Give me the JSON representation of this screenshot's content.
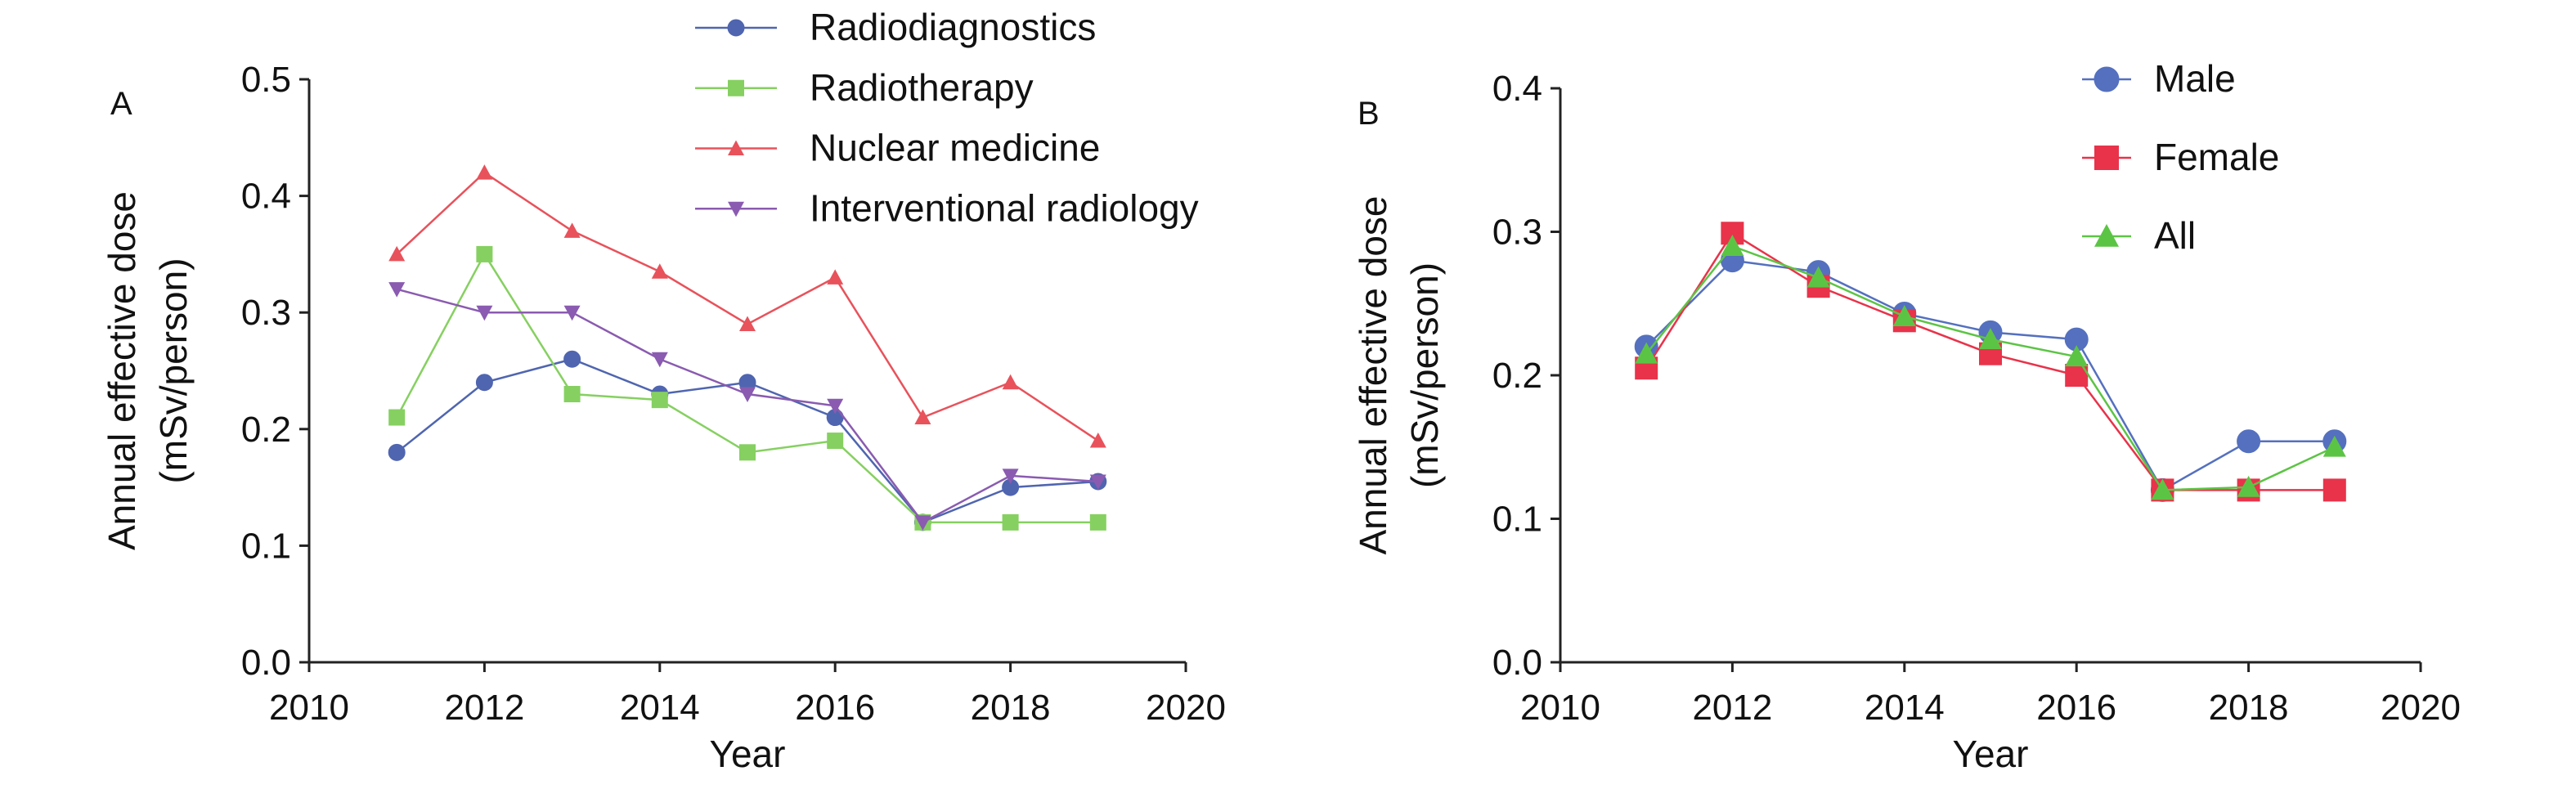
{
  "chart_data": [
    {
      "type": "line",
      "panel_label": "A",
      "title": "",
      "xlabel": "Year",
      "ylabel": [
        "Annual effective dose",
        "(mSv/person)"
      ],
      "xlim": [
        2010,
        2020
      ],
      "ylim": [
        0,
        0.5
      ],
      "xticks": [
        "2010",
        "2012",
        "2014",
        "2016",
        "2018",
        "2020"
      ],
      "yticks": [
        "0.0",
        "0.1",
        "0.2",
        "0.3",
        "0.4",
        "0.5"
      ],
      "grid": false,
      "legend_position": "top-right",
      "x": [
        2011,
        2012,
        2013,
        2014,
        2015,
        2016,
        2017,
        2018,
        2019
      ],
      "series": [
        {
          "name": "Radiodiagnostics",
          "color": "#4f65b0",
          "marker": "circle",
          "values": [
            0.18,
            0.24,
            0.26,
            0.23,
            0.24,
            0.21,
            0.12,
            0.15,
            0.155
          ]
        },
        {
          "name": "Radiotherapy",
          "color": "#86d061",
          "marker": "square",
          "values": [
            0.21,
            0.35,
            0.23,
            0.225,
            0.18,
            0.19,
            0.12,
            0.12,
            0.12
          ]
        },
        {
          "name": "Nuclear medicine",
          "color": "#e8525b",
          "marker": "triangle-up",
          "values": [
            0.35,
            0.42,
            0.37,
            0.335,
            0.29,
            0.33,
            0.21,
            0.24,
            0.19
          ]
        },
        {
          "name": "Interventional radiology",
          "color": "#8a5bb0",
          "marker": "triangle-down",
          "values": [
            0.32,
            0.3,
            0.3,
            0.26,
            0.23,
            0.22,
            0.12,
            0.16,
            0.155
          ]
        }
      ]
    },
    {
      "type": "line",
      "panel_label": "B",
      "title": "",
      "xlabel": "Year",
      "ylabel": [
        "Annual effective dose",
        "(mSv/person)"
      ],
      "xlim": [
        2010,
        2020
      ],
      "ylim": [
        0,
        0.4
      ],
      "xticks": [
        "2010",
        "2012",
        "2014",
        "2016",
        "2018",
        "2020"
      ],
      "yticks": [
        "0.0",
        "0.1",
        "0.2",
        "0.3",
        "0.4"
      ],
      "grid": false,
      "legend_position": "top-right",
      "x": [
        2011,
        2012,
        2013,
        2014,
        2015,
        2016,
        2017,
        2018,
        2019
      ],
      "series": [
        {
          "name": "Male",
          "color": "#5470bf",
          "marker": "circle",
          "values": [
            0.22,
            0.28,
            0.272,
            0.243,
            0.23,
            0.225,
            0.12,
            0.154,
            0.154
          ]
        },
        {
          "name": "Female",
          "color": "#e8334a",
          "marker": "square",
          "values": [
            0.205,
            0.299,
            0.262,
            0.238,
            0.215,
            0.2,
            0.12,
            0.12,
            0.12
          ]
        },
        {
          "name": "All",
          "color": "#5cc445",
          "marker": "triangle-up",
          "values": [
            0.215,
            0.29,
            0.268,
            0.241,
            0.225,
            0.213,
            0.12,
            0.122,
            0.15
          ]
        }
      ]
    }
  ]
}
